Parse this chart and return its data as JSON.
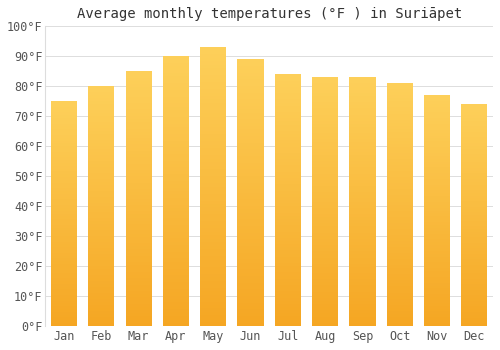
{
  "title": "Average monthly temperatures (°F ) in Suriāpet",
  "months": [
    "Jan",
    "Feb",
    "Mar",
    "Apr",
    "May",
    "Jun",
    "Jul",
    "Aug",
    "Sep",
    "Oct",
    "Nov",
    "Dec"
  ],
  "values": [
    75,
    80,
    85,
    90,
    93,
    89,
    84,
    83,
    83,
    81,
    77,
    74
  ],
  "bar_color_outer": "#F5A623",
  "bar_color_inner": "#FDD05A",
  "background_color": "#ffffff",
  "grid_color": "#dddddd",
  "ylim": [
    0,
    100
  ],
  "yticks": [
    0,
    10,
    20,
    30,
    40,
    50,
    60,
    70,
    80,
    90,
    100
  ],
  "ytick_labels": [
    "0°F",
    "10°F",
    "20°F",
    "30°F",
    "40°F",
    "50°F",
    "60°F",
    "70°F",
    "80°F",
    "90°F",
    "100°F"
  ],
  "title_fontsize": 10,
  "tick_fontsize": 8.5,
  "bar_width": 0.7,
  "figsize": [
    5.0,
    3.5
  ],
  "dpi": 100
}
